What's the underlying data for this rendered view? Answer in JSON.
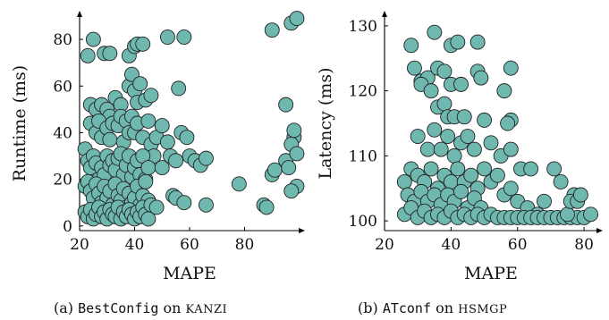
{
  "marker_color": "#6fb8b0",
  "marker_stroke": "#222222",
  "chart_data": [
    {
      "type": "scatter",
      "xlabel": "MAPE",
      "ylabel": "Runtime (ms)",
      "xlim": [
        20,
        100
      ],
      "ylim": [
        -2,
        90
      ],
      "xticks": [
        20,
        40,
        60,
        80
      ],
      "yticks": [
        0,
        20,
        40,
        60,
        80
      ],
      "caption": {
        "prefix": "(a) ",
        "tool": "BestConfig",
        "mid": " on ",
        "system": "KANZI"
      },
      "points": [
        [
          23,
          73
        ],
        [
          25,
          80
        ],
        [
          29,
          74
        ],
        [
          31,
          74
        ],
        [
          38,
          73
        ],
        [
          40,
          77
        ],
        [
          41,
          78
        ],
        [
          43,
          78
        ],
        [
          52,
          81
        ],
        [
          58,
          81
        ],
        [
          24,
          52
        ],
        [
          26,
          50
        ],
        [
          28,
          52
        ],
        [
          30,
          50
        ],
        [
          31,
          47
        ],
        [
          33,
          55
        ],
        [
          35,
          52
        ],
        [
          36,
          46
        ],
        [
          38,
          60
        ],
        [
          39,
          65
        ],
        [
          40,
          58
        ],
        [
          41,
          53
        ],
        [
          42,
          61
        ],
        [
          44,
          54
        ],
        [
          46,
          56
        ],
        [
          56,
          59
        ],
        [
          24,
          44
        ],
        [
          26,
          40
        ],
        [
          27,
          45
        ],
        [
          28,
          38
        ],
        [
          30,
          42
        ],
        [
          31,
          37
        ],
        [
          32,
          44
        ],
        [
          34,
          43
        ],
        [
          35,
          47
        ],
        [
          36,
          36
        ],
        [
          37,
          45
        ],
        [
          38,
          40
        ],
        [
          39,
          47
        ],
        [
          40,
          40
        ],
        [
          41,
          44
        ],
        [
          43,
          38
        ],
        [
          45,
          45
        ],
        [
          46,
          35
        ],
        [
          47,
          30
        ],
        [
          48,
          38
        ],
        [
          50,
          43
        ],
        [
          52,
          36
        ],
        [
          53,
          30
        ],
        [
          55,
          28
        ],
        [
          57,
          40
        ],
        [
          59,
          38
        ],
        [
          60,
          30
        ],
        [
          62,
          28
        ],
        [
          64,
          26
        ],
        [
          66,
          29
        ],
        [
          22,
          33
        ],
        [
          23,
          28
        ],
        [
          24,
          25
        ],
        [
          25,
          30
        ],
        [
          26,
          27
        ],
        [
          27,
          20
        ],
        [
          28,
          25
        ],
        [
          29,
          22
        ],
        [
          30,
          30
        ],
        [
          31,
          26
        ],
        [
          32,
          28
        ],
        [
          33,
          24
        ],
        [
          34,
          29
        ],
        [
          35,
          31
        ],
        [
          36,
          22
        ],
        [
          37,
          26
        ],
        [
          38,
          30
        ],
        [
          39,
          21
        ],
        [
          40,
          25
        ],
        [
          41,
          28
        ],
        [
          42,
          22
        ],
        [
          43,
          30
        ],
        [
          44,
          20
        ],
        [
          45,
          25
        ],
        [
          22,
          17
        ],
        [
          23,
          19
        ],
        [
          24,
          15
        ],
        [
          25,
          12
        ],
        [
          26,
          18
        ],
        [
          27,
          14
        ],
        [
          28,
          10
        ],
        [
          29,
          17
        ],
        [
          30,
          12
        ],
        [
          31,
          15
        ],
        [
          32,
          9
        ],
        [
          33,
          18
        ],
        [
          34,
          13
        ],
        [
          35,
          11
        ],
        [
          36,
          16
        ],
        [
          37,
          8
        ],
        [
          38,
          14
        ],
        [
          39,
          10
        ],
        [
          40,
          12
        ],
        [
          41,
          17
        ],
        [
          42,
          9
        ],
        [
          43,
          13
        ],
        [
          44,
          19
        ],
        [
          45,
          11
        ],
        [
          22,
          6
        ],
        [
          23,
          4
        ],
        [
          24,
          7
        ],
        [
          25,
          3
        ],
        [
          26,
          5
        ],
        [
          27,
          8
        ],
        [
          28,
          4
        ],
        [
          29,
          6
        ],
        [
          30,
          3
        ],
        [
          31,
          7
        ],
        [
          32,
          5
        ],
        [
          33,
          4
        ],
        [
          34,
          8
        ],
        [
          35,
          3
        ],
        [
          36,
          6
        ],
        [
          37,
          4
        ],
        [
          38,
          7
        ],
        [
          39,
          5
        ],
        [
          40,
          3
        ],
        [
          41,
          6
        ],
        [
          42,
          4
        ],
        [
          43,
          8
        ],
        [
          44,
          5
        ],
        [
          45,
          3
        ],
        [
          46,
          9
        ],
        [
          48,
          8
        ],
        [
          50,
          25
        ],
        [
          54,
          13
        ],
        [
          55,
          12
        ],
        [
          58,
          10
        ],
        [
          66,
          9
        ],
        [
          78,
          18
        ],
        [
          87,
          9
        ],
        [
          88,
          8
        ],
        [
          90,
          22
        ],
        [
          91,
          24
        ],
        [
          95,
          28
        ],
        [
          96,
          25
        ],
        [
          98,
          38
        ],
        [
          97,
          35
        ],
        [
          98,
          41
        ],
        [
          99,
          31
        ],
        [
          99,
          17
        ],
        [
          97,
          15
        ],
        [
          95,
          52
        ],
        [
          90,
          84
        ],
        [
          97,
          87
        ],
        [
          99,
          89
        ]
      ]
    },
    {
      "type": "scatter",
      "xlabel": "MAPE",
      "ylabel": "Latency (ms)",
      "xlim": [
        20,
        84
      ],
      "ylim": [
        98.5,
        131.5
      ],
      "xticks": [
        20,
        40,
        60,
        80
      ],
      "yticks": [
        100,
        110,
        120,
        130
      ],
      "caption": {
        "prefix": "(b) ",
        "tool": "ATconf",
        "mid": " on ",
        "system": "HSMGP"
      },
      "points": [
        [
          28,
          127
        ],
        [
          35,
          129
        ],
        [
          40,
          127
        ],
        [
          42,
          127.5
        ],
        [
          48,
          127.5
        ],
        [
          29,
          123.5
        ],
        [
          31,
          121.5
        ],
        [
          33,
          122
        ],
        [
          36,
          123.5
        ],
        [
          38,
          123
        ],
        [
          40,
          121
        ],
        [
          43,
          121
        ],
        [
          48,
          123
        ],
        [
          49,
          122
        ],
        [
          56,
          120
        ],
        [
          58,
          123.5
        ],
        [
          31,
          121
        ],
        [
          34,
          120
        ],
        [
          36,
          117.5
        ],
        [
          38,
          118
        ],
        [
          39,
          116
        ],
        [
          41,
          116
        ],
        [
          44,
          116
        ],
        [
          50,
          115.5
        ],
        [
          58,
          115.5
        ],
        [
          57,
          115
        ],
        [
          30,
          113
        ],
        [
          33,
          111
        ],
        [
          35,
          114
        ],
        [
          37,
          111
        ],
        [
          39,
          113
        ],
        [
          41,
          110
        ],
        [
          43,
          112
        ],
        [
          45,
          113
        ],
        [
          47,
          111
        ],
        [
          52,
          112
        ],
        [
          55,
          110
        ],
        [
          58,
          111
        ],
        [
          61,
          108
        ],
        [
          64,
          108
        ],
        [
          71,
          108
        ],
        [
          73,
          106
        ],
        [
          77,
          104
        ],
        [
          26,
          106
        ],
        [
          28,
          108
        ],
        [
          30,
          107
        ],
        [
          32,
          106
        ],
        [
          34,
          108
        ],
        [
          36,
          105
        ],
        [
          38,
          107
        ],
        [
          40,
          106
        ],
        [
          42,
          108
        ],
        [
          44,
          106
        ],
        [
          46,
          107
        ],
        [
          48,
          105
        ],
        [
          50,
          108
        ],
        [
          52,
          106
        ],
        [
          54,
          107
        ],
        [
          56,
          104
        ],
        [
          58,
          105
        ],
        [
          60,
          103
        ],
        [
          63,
          102
        ],
        [
          66,
          101
        ],
        [
          68,
          103
        ],
        [
          27,
          104
        ],
        [
          29,
          103
        ],
        [
          31,
          104.5
        ],
        [
          33,
          103
        ],
        [
          35,
          104
        ],
        [
          37,
          102.5
        ],
        [
          39,
          104
        ],
        [
          41,
          103
        ],
        [
          43,
          104.5
        ],
        [
          45,
          102
        ],
        [
          47,
          103.5
        ],
        [
          49,
          102
        ],
        [
          26,
          101
        ],
        [
          28,
          102
        ],
        [
          30,
          100.5
        ],
        [
          32,
          101.5
        ],
        [
          34,
          100.5
        ],
        [
          36,
          101
        ],
        [
          38,
          100.5
        ],
        [
          40,
          101.5
        ],
        [
          42,
          100.5
        ],
        [
          44,
          101
        ],
        [
          46,
          100.5
        ],
        [
          48,
          101
        ],
        [
          50,
          100.5
        ],
        [
          52,
          101
        ],
        [
          54,
          100.5
        ],
        [
          56,
          100.5
        ],
        [
          58,
          100.5
        ],
        [
          60,
          100.5
        ],
        [
          62,
          100.5
        ],
        [
          64,
          100.5
        ],
        [
          66,
          100.5
        ],
        [
          68,
          100.5
        ],
        [
          70,
          100.5
        ],
        [
          72,
          100.5
        ],
        [
          74,
          100.5
        ],
        [
          76,
          100.5
        ],
        [
          78,
          100.5
        ],
        [
          80,
          100.5
        ],
        [
          82,
          101
        ],
        [
          75,
          101
        ],
        [
          76,
          103
        ],
        [
          78,
          103
        ],
        [
          79,
          104
        ]
      ]
    }
  ]
}
